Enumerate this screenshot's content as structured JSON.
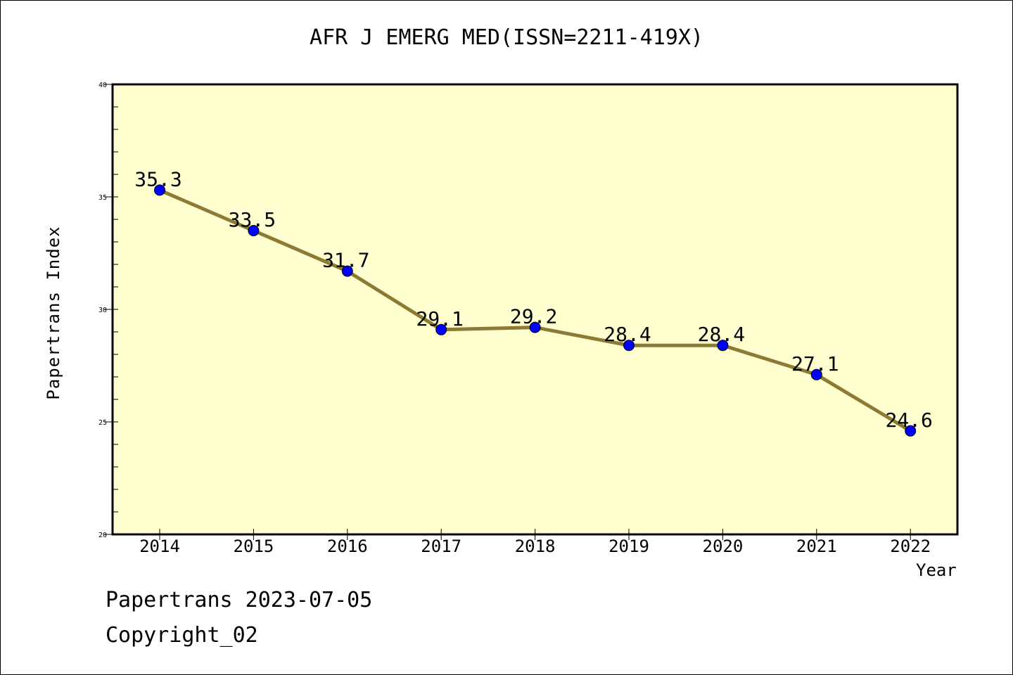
{
  "chart_data": {
    "type": "line",
    "title": "AFR J EMERG MED(ISSN=2211-419X)",
    "xlabel": "Year",
    "ylabel": "Papertrans Index",
    "categories": [
      "2014",
      "2015",
      "2016",
      "2017",
      "2018",
      "2019",
      "2020",
      "2021",
      "2022"
    ],
    "series": [
      {
        "values": [
          35.3,
          33.5,
          31.7,
          29.1,
          29.2,
          28.4,
          28.4,
          27.1,
          24.6
        ]
      }
    ],
    "data_labels": [
      "35.3",
      "33.5",
      "31.7",
      "29.1",
      "29.2",
      "28.4",
      "28.4",
      "27.1",
      "24.6"
    ],
    "ylim": [
      20,
      40
    ],
    "yticks": [
      "20",
      "25",
      "30",
      "35",
      "40"
    ],
    "grid": false,
    "colors": {
      "plot_background": "#ffffd0",
      "line": "#8c7a35",
      "marker": "#0000ff"
    }
  },
  "footer": {
    "line1": "Papertrans 2023-07-05",
    "line2": "Copyright_02"
  }
}
